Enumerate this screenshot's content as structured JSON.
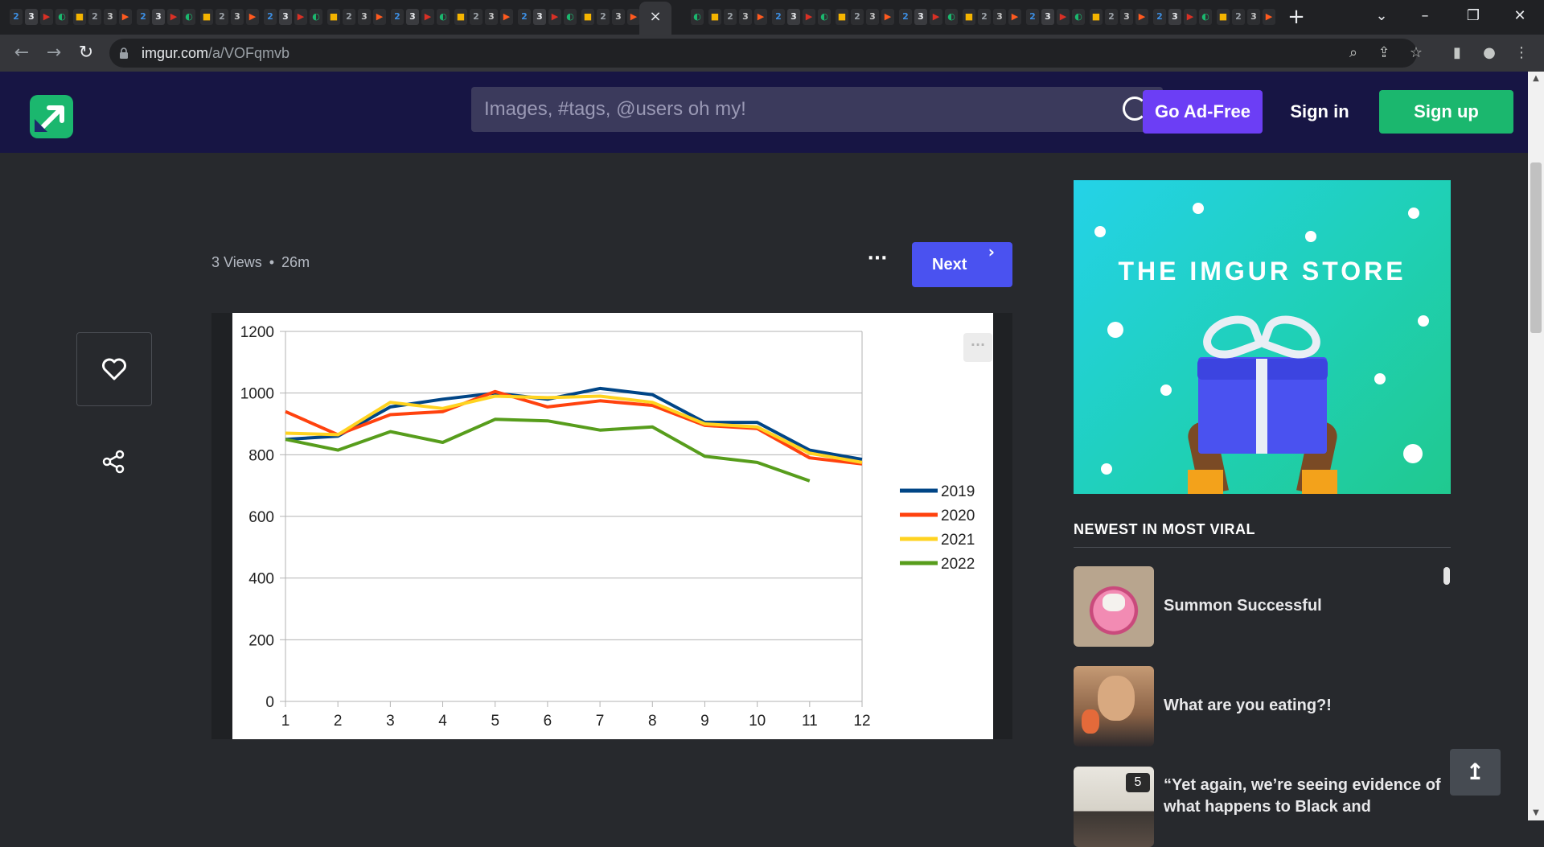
{
  "browser": {
    "active_tab_close": "×",
    "new_tab": "+",
    "url_host": "imgur.com",
    "url_path": "/a/VOFqmvb"
  },
  "header": {
    "search_placeholder": "Images, #tags, @users oh my!",
    "go_adfree": "Go Ad-Free",
    "sign_in": "Sign in",
    "sign_up": "Sign up"
  },
  "post": {
    "views": "3 Views",
    "separator": "•",
    "age": "26m",
    "more": "···",
    "next": "Next"
  },
  "ad": {
    "title": "THE IMGUR STORE"
  },
  "sidebar": {
    "heading": "NEWEST IN MOST VIRAL",
    "posts": [
      {
        "title": "Summon Successful"
      },
      {
        "title": "What are you eating?!"
      },
      {
        "title": "“Yet again, we’re seeing evidence of what happens to Black and",
        "image_count": "5"
      }
    ]
  },
  "colors": {
    "brand_green": "#1bb76e",
    "adfree_purple": "#6c3ef5",
    "next_blue": "#4a52f0",
    "header_bg": "#171544",
    "page_bg": "#27292d"
  },
  "chart_data": {
    "type": "line",
    "x": [
      1,
      2,
      3,
      4,
      5,
      6,
      7,
      8,
      9,
      10,
      11,
      12
    ],
    "xticks": [
      "1",
      "2",
      "3",
      "4",
      "5",
      "6",
      "7",
      "8",
      "9",
      "10",
      "11",
      "12"
    ],
    "ylim": [
      0,
      1200
    ],
    "yticks": [
      "0",
      "200",
      "400",
      "600",
      "800",
      "1000",
      "1200"
    ],
    "grid": true,
    "legend_position": "right",
    "series": [
      {
        "name": "2019",
        "color": "#004586",
        "values": [
          850,
          860,
          955,
          980,
          1000,
          980,
          1015,
          995,
          905,
          905,
          815,
          785
        ]
      },
      {
        "name": "2020",
        "color": "#ff420e",
        "values": [
          940,
          865,
          930,
          940,
          1005,
          955,
          975,
          960,
          895,
          885,
          790,
          770
        ]
      },
      {
        "name": "2021",
        "color": "#ffd320",
        "values": [
          870,
          865,
          970,
          950,
          990,
          985,
          990,
          970,
          900,
          890,
          805,
          775
        ]
      },
      {
        "name": "2022",
        "color": "#579d1c",
        "values": [
          850,
          815,
          875,
          840,
          915,
          910,
          880,
          890,
          795,
          775,
          715,
          null
        ]
      }
    ]
  }
}
